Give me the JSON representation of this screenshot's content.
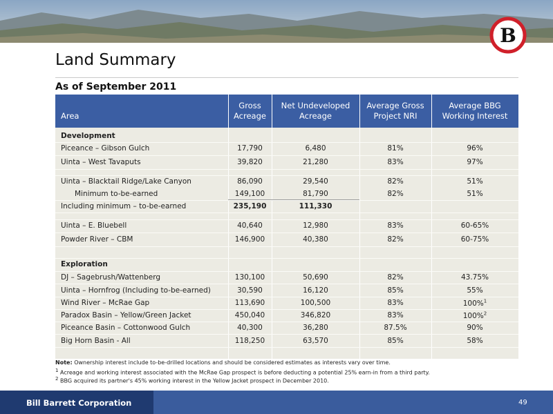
{
  "header": {
    "title": "Land Summary",
    "subtitle": "As of September 2011"
  },
  "table": {
    "columns": [
      [
        "Area"
      ],
      [
        "Gross",
        "Acreage"
      ],
      [
        "Net Undeveloped",
        "Acreage"
      ],
      [
        "Average Gross",
        "Project NRI"
      ],
      [
        "Average BBG",
        "Working Interest"
      ]
    ],
    "rows": [
      "Development",
      [
        "Piceance – Gibson Gulch",
        "17,790",
        "6,480",
        "81%",
        "96%"
      ],
      [
        "Uinta – West Tavaputs",
        "39,820",
        "21,280",
        "83%",
        "97%"
      ],
      [
        "Uinta – Blacktail Ridge/Lake Canyon",
        "86,090",
        "29,540",
        "82%",
        "51%"
      ],
      [
        "Minimum to-be-earned",
        "149,100",
        "81,790",
        "82%",
        "51%"
      ],
      [
        "Including minimum – to-be-earned",
        "235,190",
        "111,330"
      ],
      [
        "Uinta – E. Bluebell",
        "40,640",
        "12,980",
        "83%",
        "60-65%"
      ],
      [
        "Powder River – CBM",
        "146,900",
        "40,380",
        "82%",
        "60-75%"
      ],
      "Exploration",
      [
        "DJ – Sagebrush/Wattenberg",
        "130,100",
        "50,690",
        "82%",
        "43.75%"
      ],
      [
        "Uinta – Hornfrog (Including to-be-earned)",
        "30,590",
        "16,120",
        "85%",
        "55%"
      ],
      [
        "Wind River – McRae Gap",
        "113,690",
        "100,500",
        "83%",
        {
          "text": "100%",
          "sup": "1"
        }
      ],
      [
        "Paradox Basin – Yellow/Green Jacket",
        "450,040",
        "346,820",
        "83%",
        {
          "text": "100%",
          "sup": "2"
        }
      ],
      [
        "Piceance Basin – Cottonwood Gulch",
        "40,300",
        "36,280",
        "87.5%",
        "90%"
      ],
      [
        "Big Horn Basin - All",
        "118,250",
        "63,570",
        "85%",
        "58%"
      ]
    ]
  },
  "notes": [
    {
      "label": "Note:",
      "text": "Ownership interest include to-be-drilled locations and should be considered estimates as interests vary over time."
    },
    {
      "mark": "1",
      "text": "Acreage and working interest associated with the McRae Gap prospect is before deducting a potential 25% earn-in from a third party."
    },
    {
      "mark": "2",
      "text": "BBG acquired its partner's 45% working interest in the Yellow Jacket prospect in December 2010."
    }
  ],
  "footer": {
    "company": "Bill Barrett Corporation",
    "page": "49"
  }
}
